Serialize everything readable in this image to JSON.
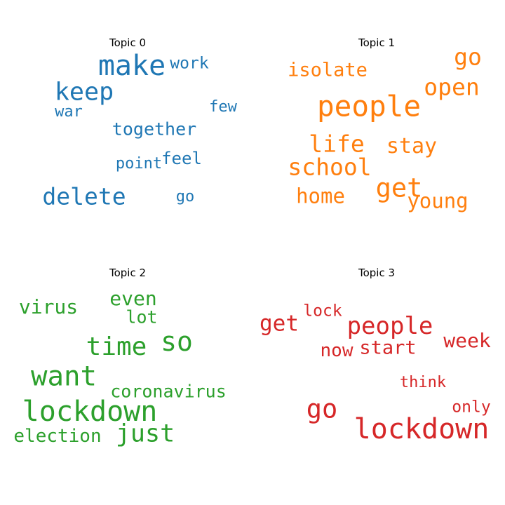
{
  "topics": [
    {
      "title": "Topic 0",
      "color": "#1f77b4",
      "words": [
        "make",
        "work",
        "keep",
        "war",
        "few",
        "together",
        "feel",
        "point",
        "delete",
        "go"
      ]
    },
    {
      "title": "Topic 1",
      "color": "#ff7f0e",
      "words": [
        "isolate",
        "go",
        "open",
        "people",
        "life",
        "stay",
        "school",
        "get",
        "home",
        "young"
      ]
    },
    {
      "title": "Topic 2",
      "color": "#2ca02c",
      "words": [
        "virus",
        "even",
        "lot",
        "so",
        "time",
        "want",
        "coronavirus",
        "lockdown",
        "just",
        "election"
      ]
    },
    {
      "title": "Topic 3",
      "color": "#d62728",
      "words": [
        "lock",
        "get",
        "people",
        "week",
        "now",
        "start",
        "think",
        "go",
        "only",
        "lockdown"
      ]
    }
  ]
}
